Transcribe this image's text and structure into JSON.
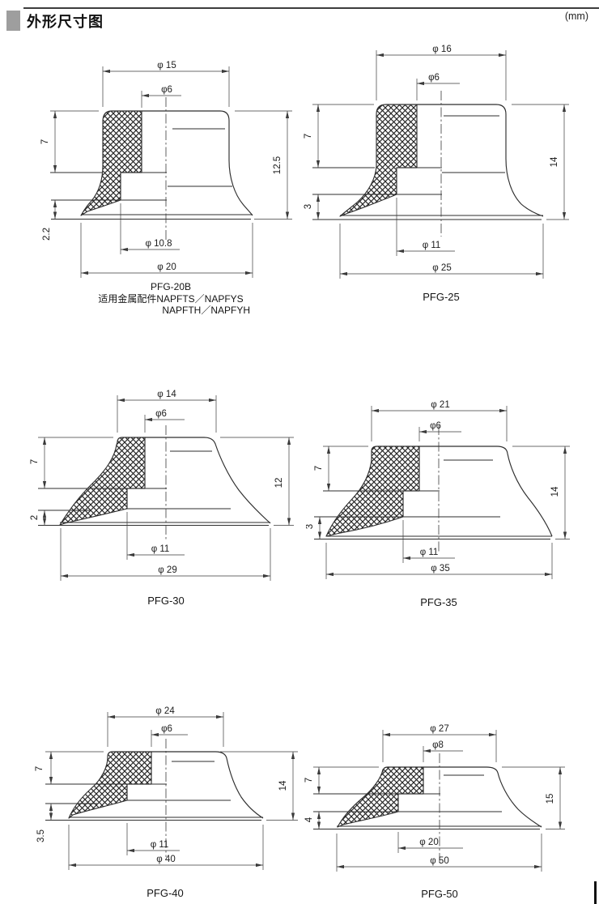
{
  "header": {
    "title": "外形尺寸图",
    "unit": "(mm)"
  },
  "diagrams": [
    {
      "id": "pfg-20b",
      "label": "PFG-20B",
      "note_line1": "适用金属配件NAPFTS／NAPFYS",
      "note_line2": "NAPFTH／NAPFYH",
      "dims": {
        "top_od": "φ 15",
        "neck_d": "φ6",
        "upper_h": "7",
        "lip_h": "2.2",
        "total_h": "12.5",
        "bore_d": "φ 10.8",
        "bottom_od": "φ 20"
      }
    },
    {
      "id": "pfg-25",
      "label": "PFG-25",
      "dims": {
        "top_od": "φ 16",
        "neck_d": "φ6",
        "upper_h": "7",
        "lip_h": "3",
        "total_h": "14",
        "bore_d": "φ 11",
        "bottom_od": "φ 25"
      }
    },
    {
      "id": "pfg-30",
      "label": "PFG-30",
      "dims": {
        "top_od": "φ 14",
        "neck_d": "φ6",
        "upper_h": "7",
        "lip_h": "2",
        "total_h": "12",
        "bore_d": "φ 11",
        "bottom_od": "φ 29"
      }
    },
    {
      "id": "pfg-35",
      "label": "PFG-35",
      "dims": {
        "top_od": "φ 21",
        "neck_d": "φ6",
        "upper_h": "7",
        "lip_h": "3",
        "total_h": "14",
        "bore_d": "φ 11",
        "bottom_od": "φ 35"
      }
    },
    {
      "id": "pfg-40",
      "label": "PFG-40",
      "dims": {
        "top_od": "φ 24",
        "neck_d": "φ6",
        "upper_h": "7",
        "lip_h": "3.5",
        "total_h": "14",
        "bore_d": "φ 11",
        "bottom_od": "φ 40"
      }
    },
    {
      "id": "pfg-50",
      "label": "PFG-50",
      "dims": {
        "top_od": "φ 27",
        "neck_d": "φ8",
        "upper_h": "7",
        "lip_h": "4",
        "total_h": "15",
        "bore_d": "φ 20",
        "bottom_od": "φ 50"
      }
    }
  ]
}
